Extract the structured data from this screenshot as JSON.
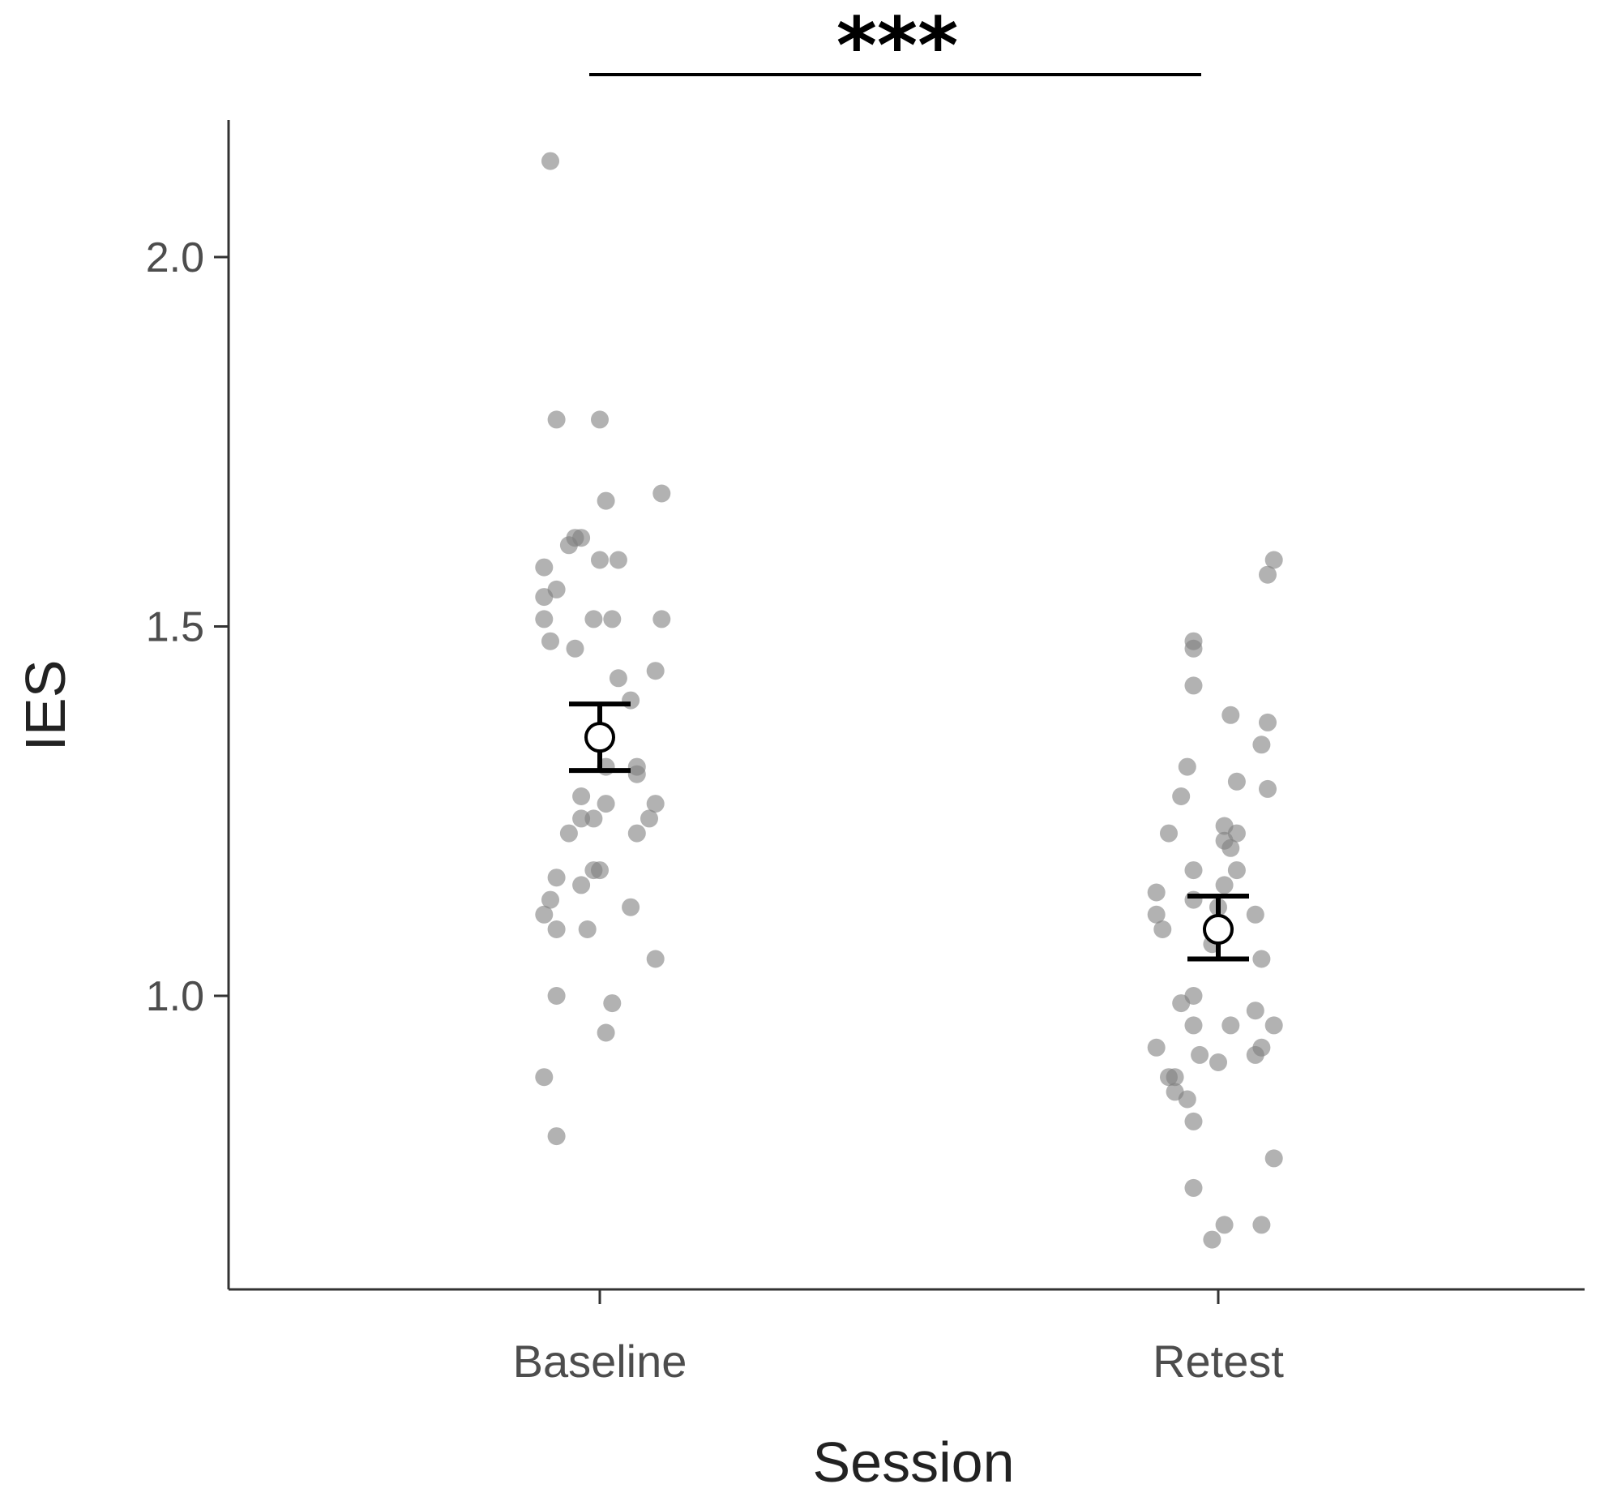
{
  "chart_data": {
    "type": "scatter",
    "title": "",
    "xlabel": "Session",
    "ylabel": "IES",
    "categories": [
      "Baseline",
      "Retest"
    ],
    "ylim": [
      0.66,
      2.18
    ],
    "yticks": [
      1.0,
      1.5,
      2.0
    ],
    "ytick_labels": [
      "1.0",
      "1.5",
      "2.0"
    ],
    "grid": false,
    "legend": "none",
    "point_color": "#7f7f7f",
    "point_opacity": 0.6,
    "significance": {
      "label": "***",
      "between": [
        "Baseline",
        "Retest"
      ]
    },
    "series": [
      {
        "category": "Baseline",
        "mean": 1.35,
        "error_low": 1.305,
        "error_high": 1.395,
        "points": [
          {
            "jitter": -0.08,
            "y": 2.13
          },
          {
            "jitter": -0.07,
            "y": 1.78
          },
          {
            "jitter": 0.0,
            "y": 1.78
          },
          {
            "jitter": 0.01,
            "y": 1.67
          },
          {
            "jitter": 0.1,
            "y": 1.68
          },
          {
            "jitter": -0.04,
            "y": 1.62
          },
          {
            "jitter": -0.03,
            "y": 1.62
          },
          {
            "jitter": -0.05,
            "y": 1.61
          },
          {
            "jitter": -0.09,
            "y": 1.58
          },
          {
            "jitter": 0.0,
            "y": 1.59
          },
          {
            "jitter": 0.03,
            "y": 1.59
          },
          {
            "jitter": -0.07,
            "y": 1.55
          },
          {
            "jitter": -0.09,
            "y": 1.54
          },
          {
            "jitter": -0.09,
            "y": 1.51
          },
          {
            "jitter": -0.01,
            "y": 1.51
          },
          {
            "jitter": 0.02,
            "y": 1.51
          },
          {
            "jitter": 0.1,
            "y": 1.51
          },
          {
            "jitter": -0.08,
            "y": 1.48
          },
          {
            "jitter": -0.04,
            "y": 1.47
          },
          {
            "jitter": 0.03,
            "y": 1.43
          },
          {
            "jitter": 0.09,
            "y": 1.44
          },
          {
            "jitter": 0.05,
            "y": 1.4
          },
          {
            "jitter": 0.01,
            "y": 1.31
          },
          {
            "jitter": 0.06,
            "y": 1.31
          },
          {
            "jitter": 0.06,
            "y": 1.3
          },
          {
            "jitter": -0.03,
            "y": 1.27
          },
          {
            "jitter": 0.01,
            "y": 1.26
          },
          {
            "jitter": 0.09,
            "y": 1.26
          },
          {
            "jitter": -0.03,
            "y": 1.24
          },
          {
            "jitter": -0.01,
            "y": 1.24
          },
          {
            "jitter": 0.08,
            "y": 1.24
          },
          {
            "jitter": -0.05,
            "y": 1.22
          },
          {
            "jitter": 0.06,
            "y": 1.22
          },
          {
            "jitter": -0.01,
            "y": 1.17
          },
          {
            "jitter": 0.0,
            "y": 1.17
          },
          {
            "jitter": -0.07,
            "y": 1.16
          },
          {
            "jitter": -0.03,
            "y": 1.15
          },
          {
            "jitter": -0.08,
            "y": 1.13
          },
          {
            "jitter": 0.05,
            "y": 1.12
          },
          {
            "jitter": -0.09,
            "y": 1.11
          },
          {
            "jitter": -0.07,
            "y": 1.09
          },
          {
            "jitter": -0.02,
            "y": 1.09
          },
          {
            "jitter": 0.09,
            "y": 1.05
          },
          {
            "jitter": -0.07,
            "y": 1.0
          },
          {
            "jitter": 0.02,
            "y": 0.99
          },
          {
            "jitter": 0.01,
            "y": 0.95
          },
          {
            "jitter": -0.09,
            "y": 0.89
          },
          {
            "jitter": -0.07,
            "y": 0.81
          }
        ]
      },
      {
        "category": "Retest",
        "mean": 1.09,
        "error_low": 1.05,
        "error_high": 1.135,
        "points": [
          {
            "jitter": 0.09,
            "y": 1.59
          },
          {
            "jitter": 0.08,
            "y": 1.57
          },
          {
            "jitter": -0.04,
            "y": 1.48
          },
          {
            "jitter": -0.04,
            "y": 1.47
          },
          {
            "jitter": -0.04,
            "y": 1.42
          },
          {
            "jitter": 0.02,
            "y": 1.38
          },
          {
            "jitter": 0.08,
            "y": 1.37
          },
          {
            "jitter": 0.07,
            "y": 1.34
          },
          {
            "jitter": -0.05,
            "y": 1.31
          },
          {
            "jitter": 0.03,
            "y": 1.29
          },
          {
            "jitter": -0.06,
            "y": 1.27
          },
          {
            "jitter": 0.08,
            "y": 1.28
          },
          {
            "jitter": 0.01,
            "y": 1.23
          },
          {
            "jitter": 0.03,
            "y": 1.22
          },
          {
            "jitter": -0.08,
            "y": 1.22
          },
          {
            "jitter": 0.01,
            "y": 1.21
          },
          {
            "jitter": 0.02,
            "y": 1.2
          },
          {
            "jitter": -0.04,
            "y": 1.17
          },
          {
            "jitter": 0.03,
            "y": 1.17
          },
          {
            "jitter": 0.01,
            "y": 1.15
          },
          {
            "jitter": -0.1,
            "y": 1.14
          },
          {
            "jitter": -0.04,
            "y": 1.13
          },
          {
            "jitter": 0.0,
            "y": 1.12
          },
          {
            "jitter": -0.1,
            "y": 1.11
          },
          {
            "jitter": 0.06,
            "y": 1.11
          },
          {
            "jitter": -0.09,
            "y": 1.09
          },
          {
            "jitter": -0.01,
            "y": 1.07
          },
          {
            "jitter": 0.07,
            "y": 1.05
          },
          {
            "jitter": -0.04,
            "y": 1.0
          },
          {
            "jitter": -0.06,
            "y": 0.99
          },
          {
            "jitter": 0.06,
            "y": 0.98
          },
          {
            "jitter": -0.04,
            "y": 0.96
          },
          {
            "jitter": 0.02,
            "y": 0.96
          },
          {
            "jitter": 0.09,
            "y": 0.96
          },
          {
            "jitter": 0.07,
            "y": 0.93
          },
          {
            "jitter": -0.1,
            "y": 0.93
          },
          {
            "jitter": -0.03,
            "y": 0.92
          },
          {
            "jitter": 0.06,
            "y": 0.92
          },
          {
            "jitter": 0.0,
            "y": 0.91
          },
          {
            "jitter": -0.08,
            "y": 0.89
          },
          {
            "jitter": -0.07,
            "y": 0.89
          },
          {
            "jitter": -0.07,
            "y": 0.87
          },
          {
            "jitter": -0.05,
            "y": 0.86
          },
          {
            "jitter": -0.04,
            "y": 0.83
          },
          {
            "jitter": 0.09,
            "y": 0.78
          },
          {
            "jitter": -0.04,
            "y": 0.74
          },
          {
            "jitter": 0.01,
            "y": 0.69
          },
          {
            "jitter": 0.07,
            "y": 0.69
          },
          {
            "jitter": -0.01,
            "y": 0.67
          }
        ]
      }
    ]
  }
}
